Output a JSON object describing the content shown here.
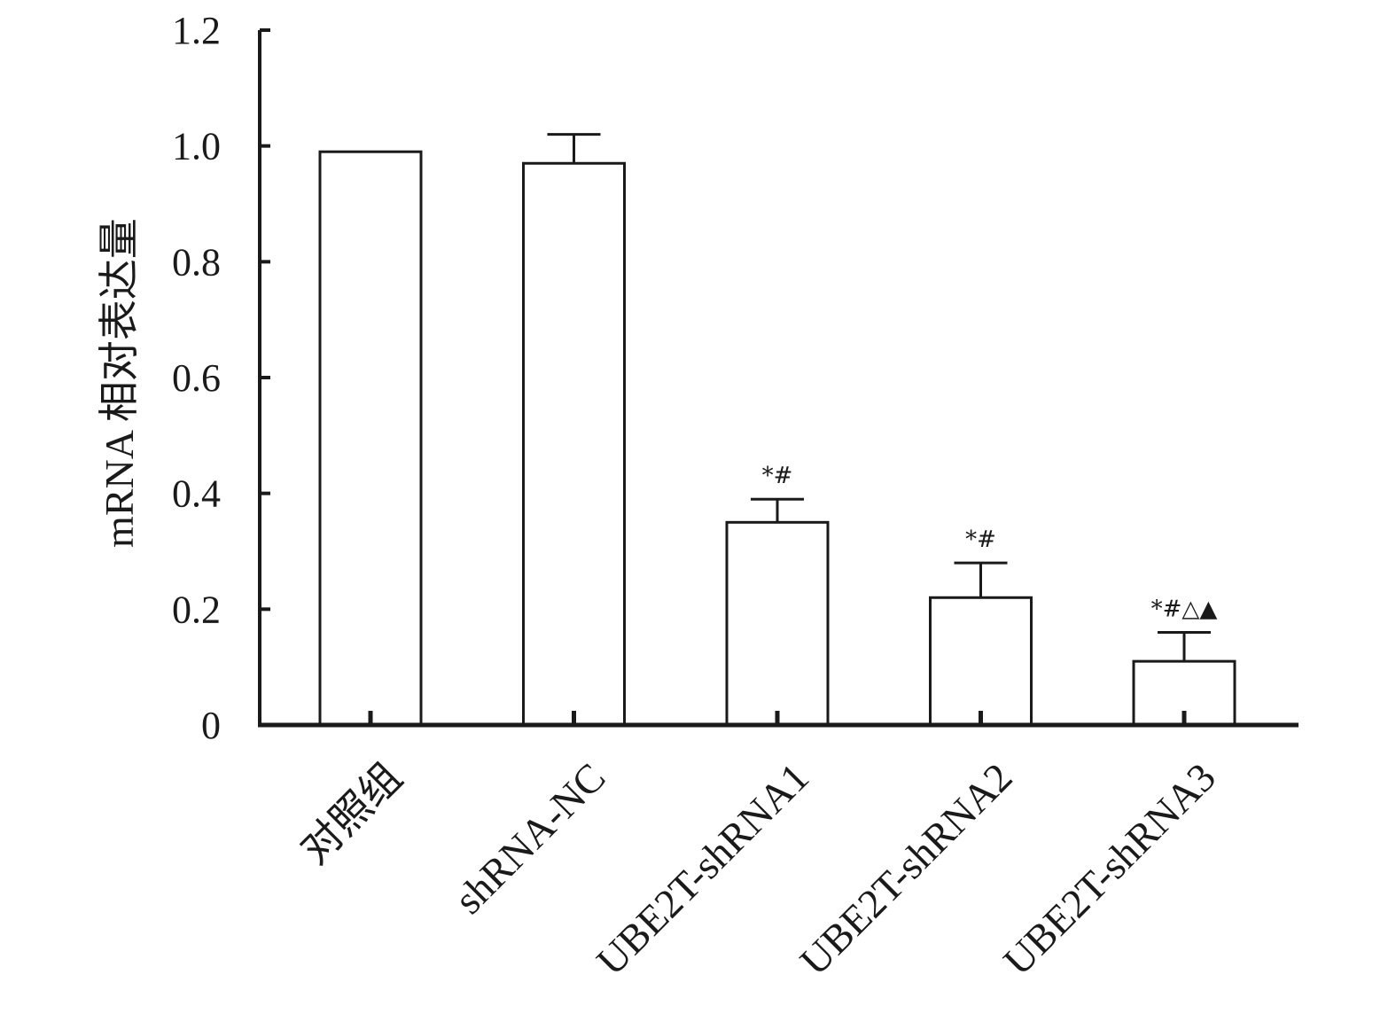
{
  "chart_data": {
    "type": "bar",
    "title": "",
    "xlabel": "",
    "ylabel": "mRNA 相对表达量",
    "ylim": [
      0,
      1.2
    ],
    "yticks": [
      "0",
      "0.2",
      "0.4",
      "0.6",
      "0.8",
      "1.0",
      "1.2"
    ],
    "categories": [
      "对照组",
      "shRNA-NC",
      "UBE2T-shRNA1",
      "UBE2T-shRNA2",
      "UBE2T-shRNA3"
    ],
    "values": [
      0.99,
      0.97,
      0.35,
      0.22,
      0.11
    ],
    "errors": [
      0.0,
      0.05,
      0.04,
      0.06,
      0.05
    ],
    "annotations": [
      "",
      "",
      "*#",
      "*#",
      "*#△▲"
    ],
    "grid": false,
    "bar_fill": "#ffffff",
    "bar_stroke": "#1a1a1a"
  }
}
